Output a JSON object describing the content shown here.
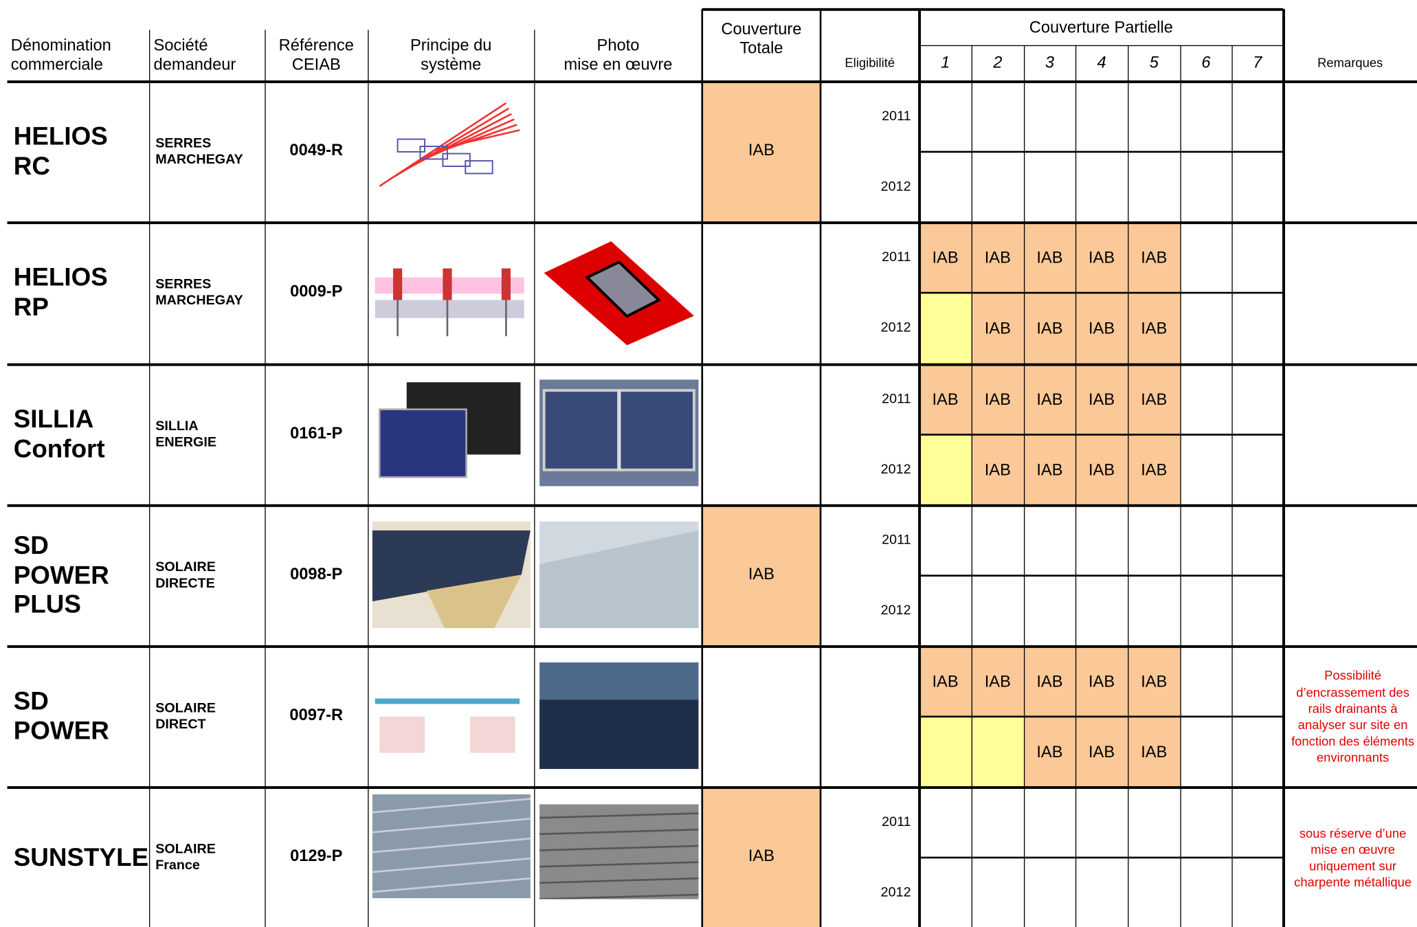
{
  "header": {
    "name": "Dénomination\ncommerciale",
    "company": "Société\ndemandeur",
    "reference": "Référence\nCEIAB",
    "principle": "Principe du\nsystème",
    "photo": "Photo\nmise en œuvre",
    "total": "Couverture\nTotale",
    "eligibility": "Eligibilité",
    "partial": "Couverture Partielle",
    "partial_columns": [
      "1",
      "2",
      "3",
      "4",
      "5",
      "6",
      "7"
    ],
    "remarks": "Remarques"
  },
  "rows": [
    {
      "name": "HELIOS\nRC",
      "company": "SERRES\nMARCHEGAY",
      "reference": "0049-R",
      "total": "IAB",
      "years": [
        2011,
        2012
      ],
      "partial": [
        [
          null,
          null,
          null,
          null,
          null,
          null,
          null
        ],
        [
          null,
          null,
          null,
          null,
          null,
          null,
          null
        ]
      ]
    },
    {
      "name": "HELIOS\nRP",
      "company": "SERRES\nMARCHEGAY",
      "reference": "0009-P",
      "years": [
        2011,
        2012
      ],
      "partial": [
        [
          "IAB",
          "IAB",
          "IAB",
          "IAB",
          "IAB",
          null,
          null
        ],
        [
          null,
          "IAB",
          "IAB",
          "IAB",
          "IAB",
          null,
          null
        ]
      ],
      "yellow_cells": [
        [
          1,
          0
        ]
      ]
    },
    {
      "name": "SILLIA\nConfort",
      "company": "SILLIA\nENERGIE",
      "reference": "0161-P",
      "years": [
        2011,
        2012
      ],
      "partial": [
        [
          "IAB",
          "IAB",
          "IAB",
          "IAB",
          "IAB",
          null,
          null
        ],
        [
          null,
          "IAB",
          "IAB",
          "IAB",
          "IAB",
          null,
          null
        ]
      ],
      "yellow_cells": [
        [
          1,
          0
        ]
      ]
    },
    {
      "name": "SD\nPOWER\nPLUS",
      "company": "SOLAIRE\nDIRECTE",
      "reference": "0098-P",
      "total": "IAB",
      "years": [
        2011,
        2012
      ],
      "partial": [
        [
          null,
          null,
          null,
          null,
          null,
          null,
          null
        ],
        [
          null,
          null,
          null,
          null,
          null,
          null,
          null
        ]
      ]
    },
    {
      "name": "SD\nPOWER",
      "company": "SOLAIRE\nDIRECT",
      "reference": "0097-R",
      "partial": [
        [
          "IAB",
          "IAB",
          "IAB",
          "IAB",
          "IAB",
          null,
          null
        ],
        [
          null,
          null,
          "IAB",
          "IAB",
          "IAB",
          null,
          null
        ]
      ],
      "yellow_cells": [
        [
          1,
          0
        ],
        [
          1,
          1
        ]
      ],
      "remarks": "Possibilité d’encrassement des rails drainants à analyser sur site en fonction des éléments environnants"
    },
    {
      "name": "SUNSTYLE",
      "company": "SOLAIRE\nFrance",
      "reference": "0129-P",
      "total": "IAB",
      "years": [
        2011,
        2012
      ],
      "partial": [
        [
          null,
          null,
          null,
          null,
          null,
          null,
          null
        ],
        [
          null,
          null,
          null,
          null,
          null,
          null,
          null
        ]
      ],
      "remarks": "sous réserve d’une mise en œuvre uniquement sur charpente métallique"
    }
  ]
}
